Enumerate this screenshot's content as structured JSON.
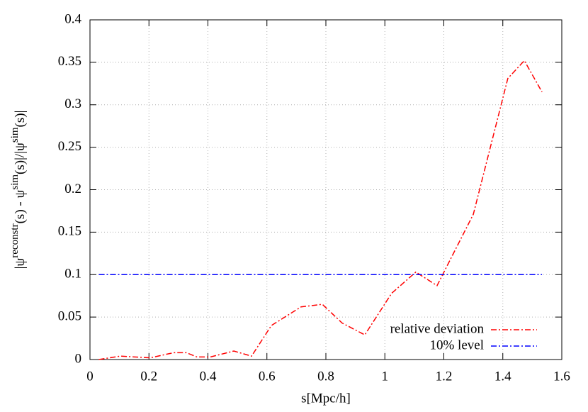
{
  "chart_data": {
    "type": "line",
    "xlabel": "s[Mpc/h]",
    "ylabel_parts": [
      "|ψ",
      "reconstr",
      "(s) - ψ",
      "sim",
      "(s)|/|ψ",
      "sim",
      "(s)|"
    ],
    "xlim": [
      0,
      1.6
    ],
    "ylim": [
      0,
      0.4
    ],
    "xticks": [
      0,
      0.2,
      0.4,
      0.6,
      0.8,
      1,
      1.2,
      1.4,
      1.6
    ],
    "yticks": [
      0,
      0.05,
      0.1,
      0.15,
      0.2,
      0.25,
      0.3,
      0.35,
      0.4
    ],
    "grid": true,
    "legend": "bottom right",
    "series": [
      {
        "name": "relative deviation",
        "color": "#ff0000",
        "x": [
          0.03,
          0.103,
          0.204,
          0.283,
          0.327,
          0.363,
          0.408,
          0.488,
          0.548,
          0.615,
          0.716,
          0.788,
          0.855,
          0.932,
          1.023,
          1.105,
          1.177,
          1.3,
          1.417,
          1.473,
          1.533
        ],
        "values": [
          0.0,
          0.004,
          0.002,
          0.008,
          0.008,
          0.003,
          0.003,
          0.01,
          0.004,
          0.04,
          0.062,
          0.065,
          0.043,
          0.029,
          0.078,
          0.103,
          0.087,
          0.171,
          0.331,
          0.352,
          0.315
        ]
      },
      {
        "name": "10% level",
        "color": "#0000ff",
        "x": [
          0.03,
          1.533
        ],
        "values": [
          0.1,
          0.1
        ]
      }
    ]
  }
}
